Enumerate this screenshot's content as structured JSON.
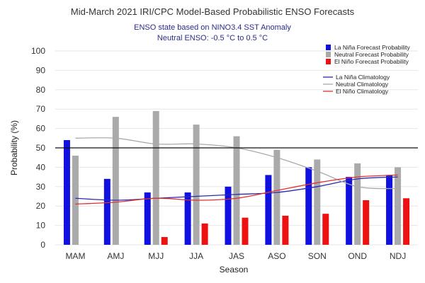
{
  "colors": {
    "la_nina": "#1010e0",
    "neutral": "#aaaaaa",
    "el_nino": "#ee1111",
    "subtitle": "#2b2b8a"
  },
  "chart_data": {
    "type": "bar",
    "title": "Mid-March 2021 IRI/CPC Model-Based Probabilistic ENSO Forecasts",
    "subtitle_line1": "ENSO state based on NINO3.4 SST Anomaly",
    "subtitle_line2": "Neutral ENSO: -0.5 °C to 0.5 °C",
    "xlabel": "Season",
    "ylabel": "Probability (%)",
    "ylim": [
      0,
      100
    ],
    "yticks": [
      0,
      10,
      20,
      30,
      40,
      50,
      60,
      70,
      80,
      90,
      100
    ],
    "reference_line": 50,
    "categories": [
      "MAM",
      "AMJ",
      "MJJ",
      "JJA",
      "JAS",
      "ASO",
      "SON",
      "OND",
      "NDJ"
    ],
    "series": [
      {
        "name": "La Niña Forecast Probability",
        "key": "la_nina",
        "values": [
          54,
          34,
          27,
          27,
          30,
          36,
          40,
          35,
          36
        ]
      },
      {
        "name": "Neutral Forecast Probability",
        "key": "neutral",
        "values": [
          46,
          66,
          69,
          62,
          56,
          49,
          44,
          42,
          40
        ]
      },
      {
        "name": "El Niño Forecast Probability",
        "key": "el_nino",
        "values": [
          0,
          0,
          4,
          11,
          14,
          15,
          16,
          23,
          24
        ]
      }
    ],
    "climatology": [
      {
        "name": "La Niña Climatology",
        "key": "la_nina",
        "values": [
          24,
          23,
          24,
          25,
          26,
          27,
          30,
          34,
          35
        ]
      },
      {
        "name": "Neutral Climatology",
        "key": "neutral",
        "values": [
          55,
          55,
          52,
          52,
          50,
          45,
          38,
          30,
          29
        ]
      },
      {
        "name": "El Niño Climatology",
        "key": "el_nino",
        "values": [
          21,
          22,
          24,
          23,
          24,
          28,
          32,
          35,
          36
        ]
      }
    ]
  }
}
